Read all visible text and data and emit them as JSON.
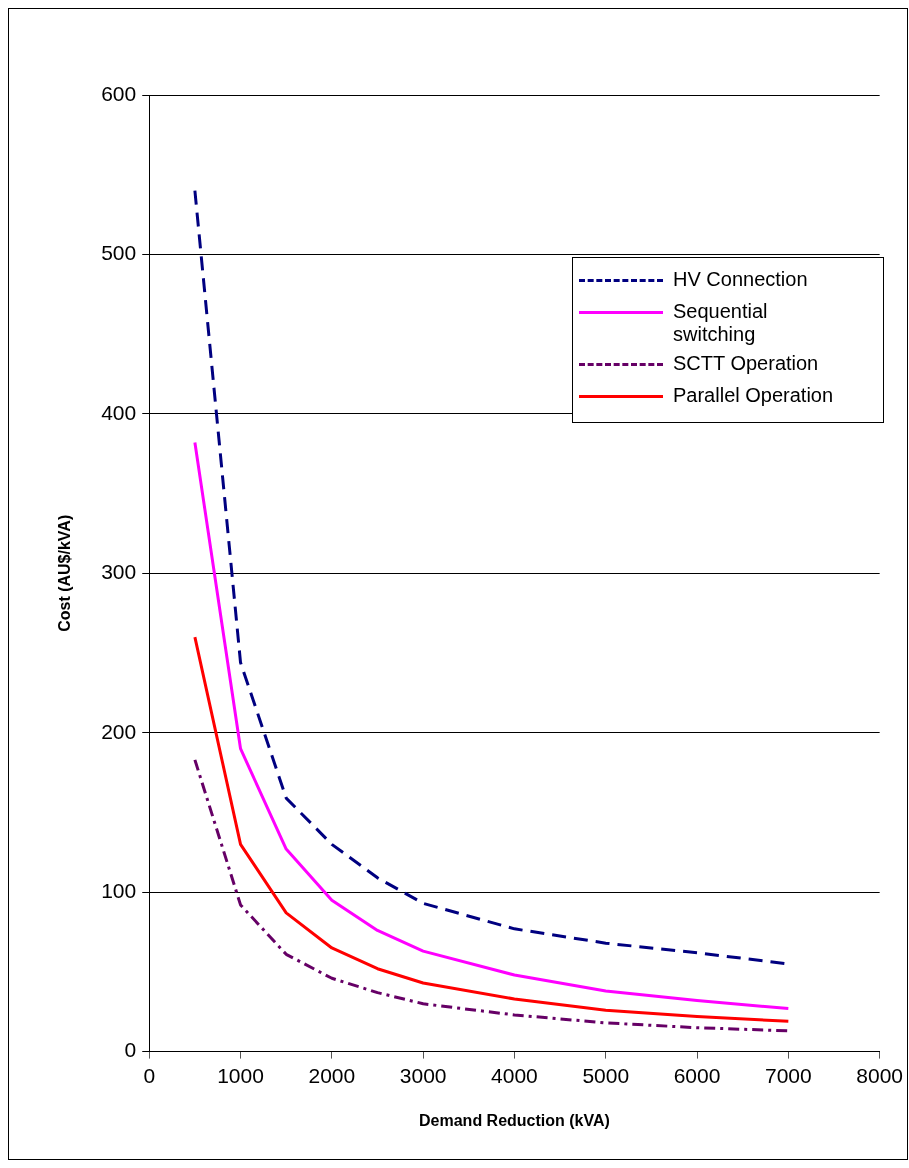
{
  "chart_data": {
    "type": "line",
    "xlabel": "Demand Reduction (kVA)",
    "ylabel": "Cost (AU$/kVA)",
    "x": [
      500,
      1000,
      1500,
      2000,
      2500,
      3000,
      4000,
      5000,
      6000,
      7000
    ],
    "xlim": [
      0,
      8000
    ],
    "xticks": [
      0,
      1000,
      2000,
      3000,
      4000,
      5000,
      6000,
      7000,
      8000
    ],
    "ylim": [
      0,
      600
    ],
    "yticks": [
      0,
      100,
      200,
      300,
      400,
      500,
      600
    ],
    "grid": "y",
    "legend": "top right",
    "marker": "none",
    "series": [
      {
        "name": "HV Connection",
        "color": "#000080",
        "line_style": "dashed",
        "values": [
          540,
          244,
          159,
          130,
          109,
          93,
          77,
          68,
          62,
          55
        ]
      },
      {
        "name": "Sequential switching",
        "color": "#ff00ff",
        "line_style": "solid",
        "values": [
          382,
          190,
          127,
          95,
          76,
          63,
          48,
          38,
          32,
          27
        ]
      },
      {
        "name": "SCTT Operation",
        "color": "#660066",
        "line_style": "dashdot",
        "values": [
          183,
          92,
          61,
          46,
          37,
          30,
          23,
          18,
          15,
          13
        ]
      },
      {
        "name": "Parallel Operation",
        "color": "#ff0000",
        "line_style": "solid",
        "values": [
          260,
          130,
          87,
          65,
          52,
          43,
          33,
          26,
          22,
          19
        ]
      }
    ]
  }
}
